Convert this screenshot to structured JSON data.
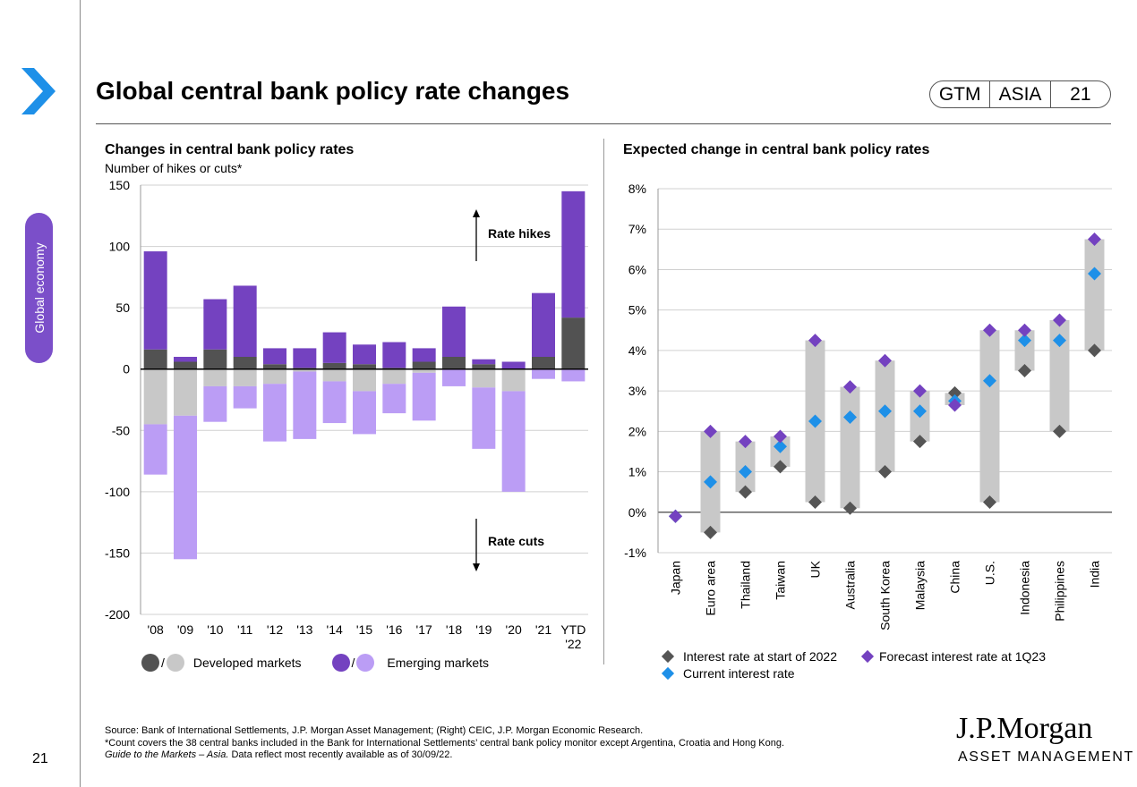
{
  "page": {
    "title": "Global central bank policy rate changes",
    "badge": [
      "GTM",
      "ASIA",
      "21"
    ],
    "side_tab": "Global economy",
    "page_number": "21"
  },
  "colors": {
    "dm_hike": "#525252",
    "dm_cut": "#c8c8c8",
    "em_hike": "#7442c0",
    "em_cut": "#bb9df5",
    "accent": "#1e90e8",
    "purple": "#7b4fc9",
    "start_marker": "#555555",
    "current_marker": "#1e90e8",
    "forecast_marker": "#7442c0",
    "range_bar": "#c8c8c8"
  },
  "left": {
    "title": "Changes in central bank policy rates",
    "subtitle": "Number of hikes or cuts*",
    "annotation_up": "Rate hikes",
    "annotation_down": "Rate cuts",
    "legend_dm": "Developed markets",
    "legend_em": "Emerging markets",
    "legend_sep": "/"
  },
  "right": {
    "title": "Expected change in central bank policy rates",
    "legend_start": "Interest rate at start of 2022",
    "legend_forecast": "Forecast interest rate at 1Q23",
    "legend_current": "Current interest rate"
  },
  "footer": {
    "source": "Source: Bank of International Settlements, J.P. Morgan Asset Management; (Right) CEIC, J.P. Morgan Economic Research.",
    "note": "*Count covers the 38 central banks included in the Bank for International Settlements’ central bank policy monitor except Argentina, Croatia and Hong Kong.",
    "guide": "Guide to the Markets – Asia.",
    "asof": " Data reflect most recently available as of 30/09/22.",
    "logo_top": "J.P.Morgan",
    "logo_bottom": "ASSET MANAGEMENT"
  },
  "chart_data": [
    {
      "type": "bar",
      "stacked": true,
      "categories": [
        "'08",
        "'09",
        "'10",
        "'11",
        "'12",
        "'13",
        "'14",
        "'15",
        "'16",
        "'17",
        "'18",
        "'19",
        "'20",
        "'21",
        "YTD '22"
      ],
      "series": [
        {
          "name": "Developed markets",
          "direction": "hikes",
          "values": [
            16,
            6,
            16,
            10,
            4,
            1,
            5,
            4,
            1,
            6,
            10,
            4,
            0,
            10,
            42
          ]
        },
        {
          "name": "Emerging markets",
          "direction": "hikes",
          "values": [
            80,
            4,
            41,
            58,
            13,
            16,
            25,
            16,
            21,
            11,
            41,
            4,
            6,
            52,
            103
          ]
        },
        {
          "name": "Developed markets",
          "direction": "cuts",
          "values": [
            -45,
            -38,
            -14,
            -14,
            -12,
            -2,
            -10,
            -18,
            -12,
            -3,
            0,
            -15,
            -18,
            0,
            0
          ]
        },
        {
          "name": "Emerging markets",
          "direction": "cuts",
          "values": [
            -41,
            -117,
            -29,
            -18,
            -47,
            -55,
            -34,
            -35,
            -24,
            -39,
            -14,
            -50,
            -82,
            -8,
            -10
          ]
        }
      ],
      "ylim": [
        -200,
        150
      ],
      "yticks": [
        150,
        100,
        50,
        0,
        -50,
        -100,
        -150,
        -200
      ],
      "grid": true
    },
    {
      "type": "scatter",
      "categories": [
        "Japan",
        "Euro area",
        "Thailand",
        "Taiwan",
        "UK",
        "Australia",
        "South Korea",
        "Malaysia",
        "China",
        "U.S.",
        "Indonesia",
        "Philippines",
        "India"
      ],
      "series": [
        {
          "name": "Interest rate at start of 2022",
          "values": [
            -0.1,
            -0.5,
            0.5,
            1.125,
            0.25,
            0.1,
            1.0,
            1.75,
            2.95,
            0.25,
            3.5,
            2.0,
            4.0
          ]
        },
        {
          "name": "Current interest rate",
          "values": [
            -0.1,
            0.75,
            1.0,
            1.625,
            2.25,
            2.35,
            2.5,
            2.5,
            2.75,
            3.25,
            4.25,
            4.25,
            5.9
          ]
        },
        {
          "name": "Forecast interest rate at 1Q23",
          "values": [
            -0.1,
            2.0,
            1.75,
            1.875,
            4.25,
            3.1,
            3.75,
            3.0,
            2.65,
            4.5,
            4.5,
            4.75,
            6.75
          ]
        }
      ],
      "ylim": [
        -1,
        8
      ],
      "yticks": [
        "8%",
        "7%",
        "6%",
        "5%",
        "4%",
        "3%",
        "2%",
        "1%",
        "0%",
        "-1%"
      ],
      "grid": true
    }
  ]
}
